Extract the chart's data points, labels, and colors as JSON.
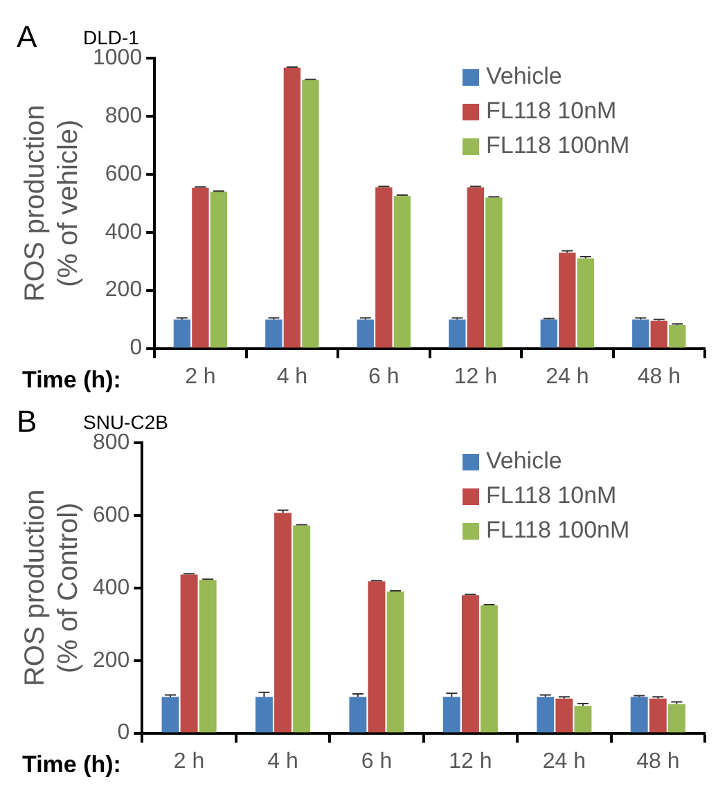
{
  "chart_data": [
    {
      "type": "bar",
      "title": "DLD-1",
      "annotations": [
        "A"
      ],
      "xlabel": "Time (h):",
      "ylabel": "ROS production\n(% of vehicle)",
      "categories": [
        "2 h",
        "4 h",
        "6 h",
        "12 h",
        "24 h",
        "48 h"
      ],
      "ylim": [
        0,
        1000
      ],
      "yticks": [
        0,
        200,
        400,
        600,
        800,
        1000
      ],
      "grid": false,
      "legend": "top right",
      "series": [
        {
          "name": "Vehicle",
          "color": "#4a7ebb",
          "values": [
            100,
            100,
            100,
            100,
            100,
            100
          ],
          "errors": [
            5,
            5,
            5,
            5,
            3,
            5
          ]
        },
        {
          "name": "FL118 10nM",
          "color": "#be4b48",
          "values": [
            553,
            967,
            555,
            555,
            330,
            95
          ],
          "errors": [
            3,
            2,
            3,
            3,
            6,
            5
          ]
        },
        {
          "name": "FL118 100nM",
          "color": "#98b954",
          "values": [
            540,
            925,
            525,
            520,
            310,
            80
          ],
          "errors": [
            2,
            2,
            3,
            2,
            6,
            4
          ]
        }
      ]
    },
    {
      "type": "bar",
      "title": "SNU-C2B",
      "annotations": [
        "B"
      ],
      "xlabel": "Time (h):",
      "ylabel": "ROS production\n(% of Control)",
      "categories": [
        "2 h",
        "4 h",
        "6 h",
        "12 h",
        "24 h",
        "48 h"
      ],
      "ylim": [
        0,
        800
      ],
      "yticks": [
        0,
        200,
        400,
        600,
        800
      ],
      "grid": false,
      "legend": "top right",
      "series": [
        {
          "name": "Vehicle",
          "color": "#4a7ebb",
          "values": [
            100,
            100,
            100,
            100,
            100,
            100
          ],
          "errors": [
            5,
            12,
            8,
            10,
            5,
            3
          ]
        },
        {
          "name": "FL118 10nM",
          "color": "#be4b48",
          "values": [
            437,
            607,
            418,
            380,
            95,
            95
          ],
          "errors": [
            2,
            7,
            2,
            2,
            5,
            5
          ]
        },
        {
          "name": "FL118 100nM",
          "color": "#98b954",
          "values": [
            422,
            572,
            390,
            352,
            75,
            80
          ],
          "errors": [
            2,
            2,
            2,
            2,
            6,
            6
          ]
        }
      ]
    }
  ]
}
